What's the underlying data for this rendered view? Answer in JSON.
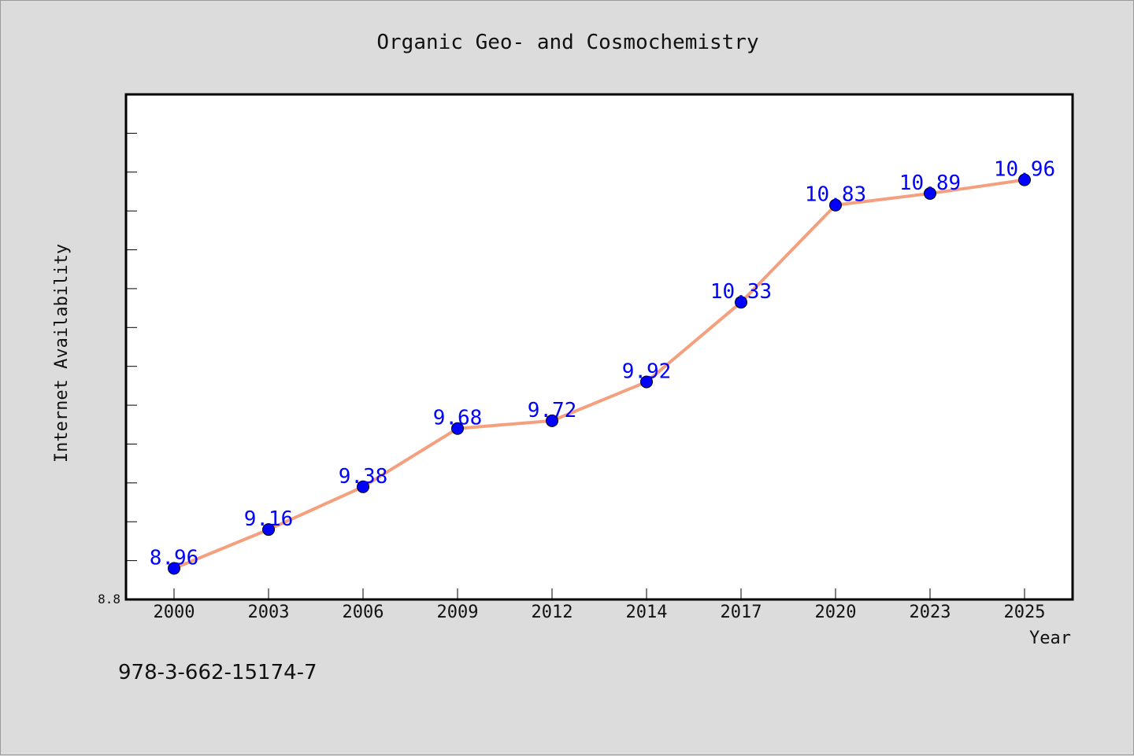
{
  "chart_data": {
    "type": "line",
    "title": "Organic Geo- and Cosmochemistry",
    "xlabel": "Year",
    "ylabel": "Internet Availability",
    "categories": [
      "2000",
      "2003",
      "2006",
      "2009",
      "2012",
      "2014",
      "2017",
      "2020",
      "2023",
      "2025"
    ],
    "series": [
      {
        "values": [
          8.96,
          9.16,
          9.38,
          9.68,
          9.72,
          9.92,
          10.33,
          10.83,
          10.89,
          10.96
        ]
      }
    ],
    "ylim": [
      8.8,
      11.4
    ],
    "y_min_label": "8.8",
    "grid": false,
    "data_labels": true,
    "colors": {
      "line": "#f4a07e",
      "marker": "#0000ff",
      "data_label": "#0000ff",
      "plot_background": "#ffffff",
      "page_background": "#dcdcdc"
    }
  },
  "footer": {
    "isbn": "978-3-662-15174-7"
  }
}
